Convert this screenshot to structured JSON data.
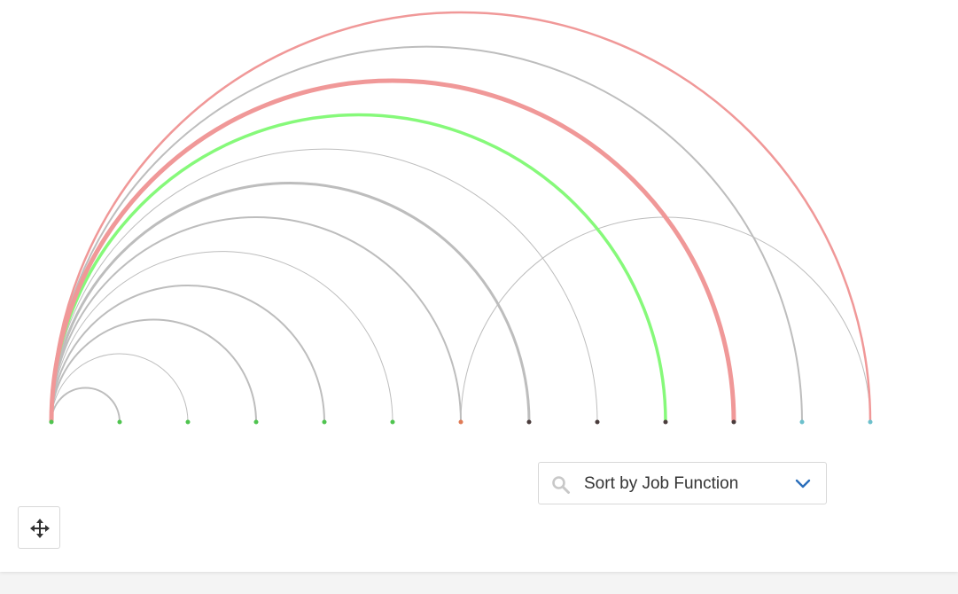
{
  "sort_control": {
    "label": "Sort by Job Function",
    "search_icon": "search-icon",
    "dropdown_icon": "chevron-down-icon",
    "chevron_color": "#2a6ebb"
  },
  "move_control": {
    "icon": "move-arrows-icon"
  },
  "arc_diagram": {
    "nodes": [
      {
        "id": 0,
        "color": "#4fc44f"
      },
      {
        "id": 1,
        "color": "#4fc44f"
      },
      {
        "id": 2,
        "color": "#4fc44f"
      },
      {
        "id": 3,
        "color": "#4fc44f"
      },
      {
        "id": 4,
        "color": "#4fc44f"
      },
      {
        "id": 5,
        "color": "#4fc44f"
      },
      {
        "id": 6,
        "color": "#e07b56"
      },
      {
        "id": 7,
        "color": "#4a3c3c"
      },
      {
        "id": 8,
        "color": "#4a3c3c"
      },
      {
        "id": 9,
        "color": "#4a3c3c"
      },
      {
        "id": 10,
        "color": "#4a3c3c"
      },
      {
        "id": 11,
        "color": "#6cc0cc"
      },
      {
        "id": 12,
        "color": "#6cc0cc"
      }
    ],
    "links": [
      {
        "source": 0,
        "target": 1,
        "color": "#bdbdbd",
        "weight": 2
      },
      {
        "source": 0,
        "target": 2,
        "color": "#bdbdbd",
        "weight": 1
      },
      {
        "source": 0,
        "target": 3,
        "color": "#bdbdbd",
        "weight": 2
      },
      {
        "source": 0,
        "target": 4,
        "color": "#bdbdbd",
        "weight": 2
      },
      {
        "source": 0,
        "target": 5,
        "color": "#bdbdbd",
        "weight": 1
      },
      {
        "source": 0,
        "target": 6,
        "color": "#bdbdbd",
        "weight": 2
      },
      {
        "source": 0,
        "target": 7,
        "color": "#bdbdbd",
        "weight": 3
      },
      {
        "source": 0,
        "target": 8,
        "color": "#bdbdbd",
        "weight": 1
      },
      {
        "source": 0,
        "target": 9,
        "color": "#86f97a",
        "weight": 3.5
      },
      {
        "source": 0,
        "target": 10,
        "color": "#f09898",
        "weight": 5
      },
      {
        "source": 0,
        "target": 11,
        "color": "#bdbdbd",
        "weight": 2
      },
      {
        "source": 0,
        "target": 12,
        "color": "#f09898",
        "weight": 2.5
      },
      {
        "source": 6,
        "target": 12,
        "color": "#bdbdbd",
        "weight": 1
      }
    ]
  }
}
